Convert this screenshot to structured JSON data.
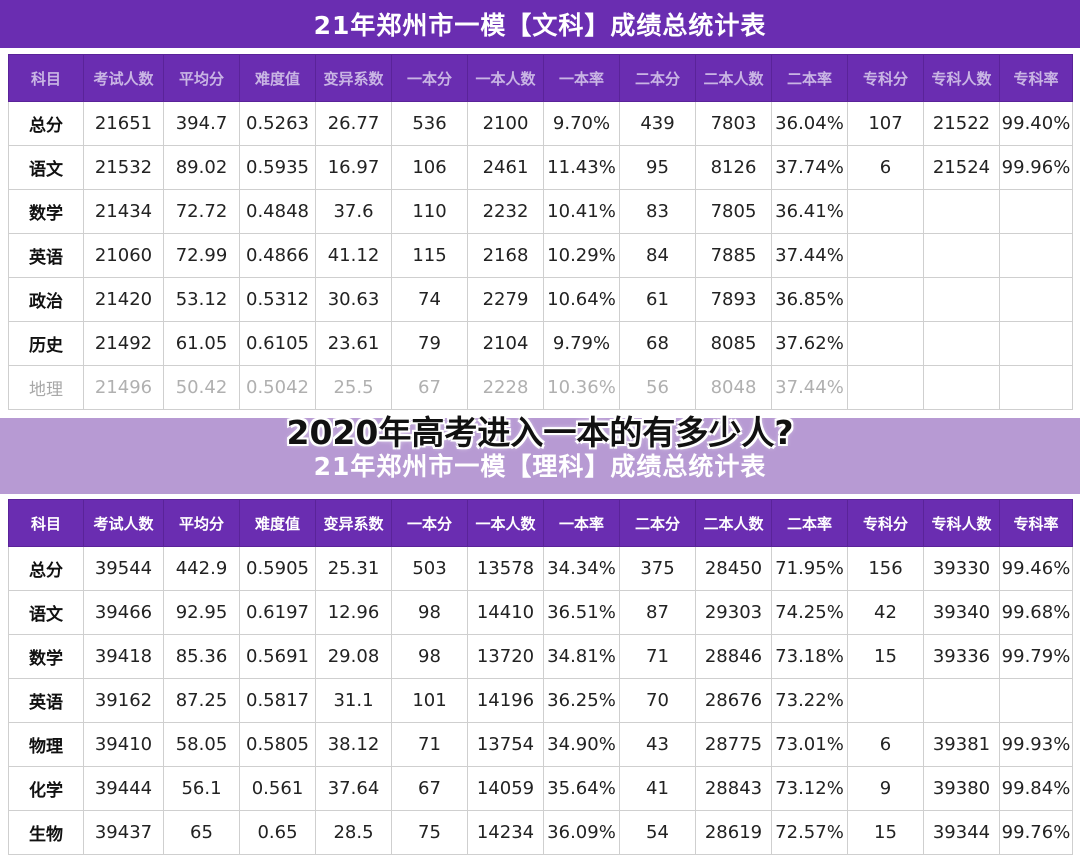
{
  "overlay_caption": "2020年高考进入一本的有多少人?",
  "wenke": {
    "title": "21年郑州市一模【文科】成绩总统计表",
    "headers": [
      "科目",
      "考试人数",
      "平均分",
      "难度值",
      "变异系数",
      "一本分",
      "一本人数",
      "一本率",
      "二本分",
      "二本人数",
      "二本率",
      "专科分",
      "专科人数",
      "专科率"
    ],
    "rows": [
      [
        "总分",
        "21651",
        "394.7",
        "0.5263",
        "26.77",
        "536",
        "2100",
        "9.70%",
        "439",
        "7803",
        "36.04%",
        "107",
        "21522",
        "99.40%"
      ],
      [
        "语文",
        "21532",
        "89.02",
        "0.5935",
        "16.97",
        "106",
        "2461",
        "11.43%",
        "95",
        "8126",
        "37.74%",
        "6",
        "21524",
        "99.96%"
      ],
      [
        "数学",
        "21434",
        "72.72",
        "0.4848",
        "37.6",
        "110",
        "2232",
        "10.41%",
        "83",
        "7805",
        "36.41%",
        "",
        "",
        ""
      ],
      [
        "英语",
        "21060",
        "72.99",
        "0.4866",
        "41.12",
        "115",
        "2168",
        "10.29%",
        "84",
        "7885",
        "37.44%",
        "",
        "",
        ""
      ],
      [
        "政治",
        "21420",
        "53.12",
        "0.5312",
        "30.63",
        "74",
        "2279",
        "10.64%",
        "61",
        "7893",
        "36.85%",
        "",
        "",
        ""
      ],
      [
        "历史",
        "21492",
        "61.05",
        "0.6105",
        "23.61",
        "79",
        "2104",
        "9.79%",
        "68",
        "8085",
        "37.62%",
        "",
        "",
        ""
      ],
      [
        "地理",
        "21496",
        "50.42",
        "0.5042",
        "25.5",
        "67",
        "2228",
        "10.36%",
        "56",
        "8048",
        "37.44%",
        "",
        "",
        ""
      ]
    ]
  },
  "like": {
    "title": "21年郑州市一模【理科】成绩总统计表",
    "headers": [
      "科目",
      "考试人数",
      "平均分",
      "难度值",
      "变异系数",
      "一本分",
      "一本人数",
      "一本率",
      "二本分",
      "二本人数",
      "二本率",
      "专科分",
      "专科人数",
      "专科率"
    ],
    "rows": [
      [
        "总分",
        "39544",
        "442.9",
        "0.5905",
        "25.31",
        "503",
        "13578",
        "34.34%",
        "375",
        "28450",
        "71.95%",
        "156",
        "39330",
        "99.46%"
      ],
      [
        "语文",
        "39466",
        "92.95",
        "0.6197",
        "12.96",
        "98",
        "14410",
        "36.51%",
        "87",
        "29303",
        "74.25%",
        "42",
        "39340",
        "99.68%"
      ],
      [
        "数学",
        "39418",
        "85.36",
        "0.5691",
        "29.08",
        "98",
        "13720",
        "34.81%",
        "71",
        "28846",
        "73.18%",
        "15",
        "39336",
        "99.79%"
      ],
      [
        "英语",
        "39162",
        "87.25",
        "0.5817",
        "31.1",
        "101",
        "14196",
        "36.25%",
        "70",
        "28676",
        "73.22%",
        "",
        "",
        ""
      ],
      [
        "物理",
        "39410",
        "58.05",
        "0.5805",
        "38.12",
        "71",
        "13754",
        "34.90%",
        "43",
        "28775",
        "73.01%",
        "6",
        "39381",
        "99.93%"
      ],
      [
        "化学",
        "39444",
        "56.1",
        "0.561",
        "37.64",
        "67",
        "14059",
        "35.64%",
        "41",
        "28843",
        "73.12%",
        "9",
        "39380",
        "99.84%"
      ],
      [
        "生物",
        "39437",
        "65",
        "0.65",
        "28.5",
        "75",
        "14234",
        "36.09%",
        "54",
        "28619",
        "72.57%",
        "15",
        "39344",
        "99.76%"
      ]
    ]
  }
}
